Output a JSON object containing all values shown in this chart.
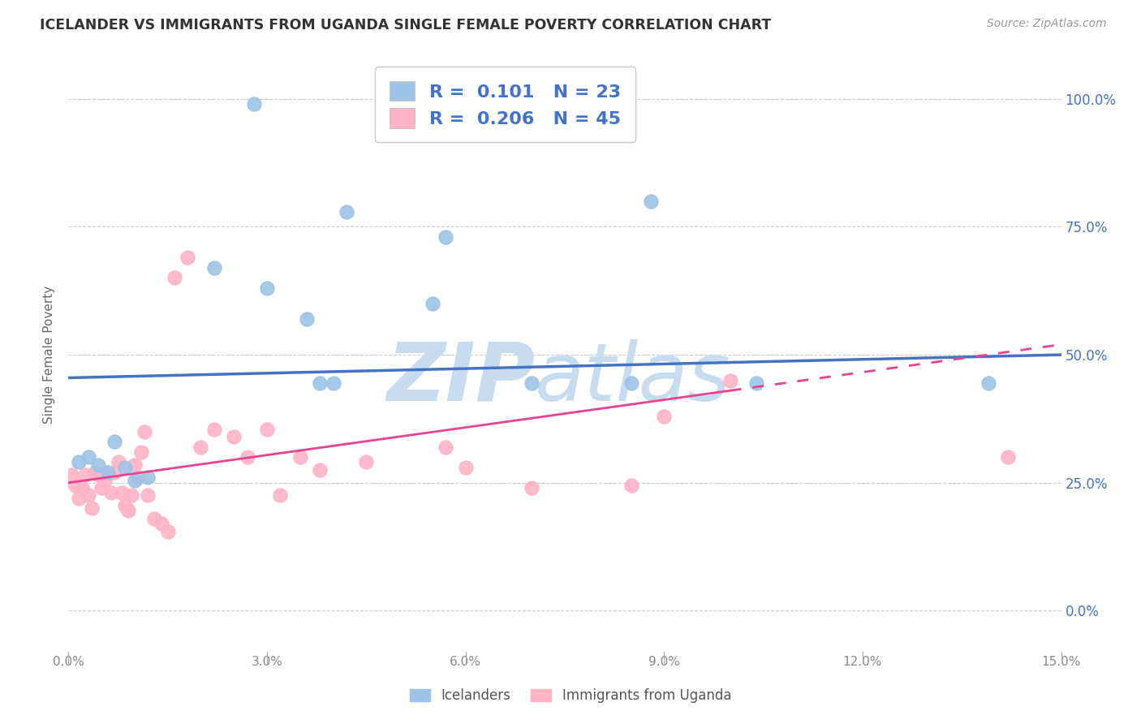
{
  "title": "ICELANDER VS IMMIGRANTS FROM UGANDA SINGLE FEMALE POVERTY CORRELATION CHART",
  "source_text": "Source: ZipAtlas.com",
  "ylabel": "Single Female Poverty",
  "xlim": [
    0.0,
    15.0
  ],
  "ylim": [
    -8.0,
    108.0
  ],
  "yticks": [
    0.0,
    25.0,
    50.0,
    75.0,
    100.0
  ],
  "xticks": [
    0.0,
    3.0,
    6.0,
    9.0,
    12.0,
    15.0
  ],
  "blue_R": 0.101,
  "blue_N": 23,
  "pink_R": 0.206,
  "pink_N": 45,
  "blue_scatter_x": [
    2.8,
    4.8,
    2.2,
    3.0,
    4.2,
    3.6,
    5.7,
    5.5,
    8.8,
    0.15,
    0.3,
    0.45,
    0.6,
    0.7,
    0.85,
    1.0,
    1.2,
    3.8,
    4.0,
    8.5,
    10.4,
    13.9,
    7.0
  ],
  "blue_scatter_y": [
    99.0,
    98.0,
    67.0,
    63.0,
    78.0,
    57.0,
    73.0,
    60.0,
    80.0,
    29.0,
    30.0,
    28.5,
    27.0,
    33.0,
    28.0,
    25.5,
    26.0,
    44.5,
    44.5,
    44.5,
    44.5,
    44.5,
    44.5
  ],
  "pink_scatter_x": [
    0.05,
    0.1,
    0.15,
    0.2,
    0.25,
    0.3,
    0.35,
    0.4,
    0.45,
    0.5,
    0.55,
    0.6,
    0.65,
    0.7,
    0.75,
    0.8,
    0.85,
    0.9,
    0.95,
    1.0,
    1.05,
    1.1,
    1.15,
    1.2,
    1.3,
    1.4,
    1.5,
    1.6,
    1.8,
    2.0,
    2.2,
    2.5,
    2.7,
    3.0,
    3.5,
    3.8,
    4.5,
    5.7,
    6.0,
    7.0,
    8.5,
    9.0,
    10.0,
    14.2,
    3.2
  ],
  "pink_scatter_y": [
    26.5,
    24.5,
    22.0,
    24.0,
    26.5,
    22.5,
    20.0,
    27.0,
    26.5,
    24.0,
    25.5,
    27.0,
    23.0,
    27.0,
    29.0,
    23.0,
    20.5,
    19.5,
    22.5,
    28.5,
    26.0,
    31.0,
    35.0,
    22.5,
    18.0,
    17.0,
    15.5,
    65.0,
    69.0,
    32.0,
    35.5,
    34.0,
    30.0,
    35.5,
    30.0,
    27.5,
    29.0,
    32.0,
    28.0,
    24.0,
    24.5,
    38.0,
    45.0,
    30.0,
    22.5
  ],
  "blue_line_x0": 0.0,
  "blue_line_y0": 45.5,
  "blue_line_x1": 15.0,
  "blue_line_y1": 50.0,
  "pink_line_x0": 0.0,
  "pink_line_y0": 25.0,
  "pink_line_x1": 10.0,
  "pink_line_y1": 43.0,
  "pink_dash_x0": 10.0,
  "pink_dash_y0": 43.0,
  "pink_dash_x1": 15.0,
  "pink_dash_y1": 52.0,
  "blue_line_color": "#4472C4",
  "pink_line_color": "#E84393",
  "blue_scatter_color": "#9DC3E6",
  "pink_scatter_color": "#FFB3C6",
  "background_color": "#FFFFFF",
  "grid_color": "#CCCCCC",
  "watermark_zip_color": "#C8DCF0",
  "watermark_atlas_color": "#C8DCF0",
  "legend_text_color": "#4472C4",
  "title_color": "#333333",
  "right_ytick_color": "#4472C4",
  "source_color": "#999999"
}
